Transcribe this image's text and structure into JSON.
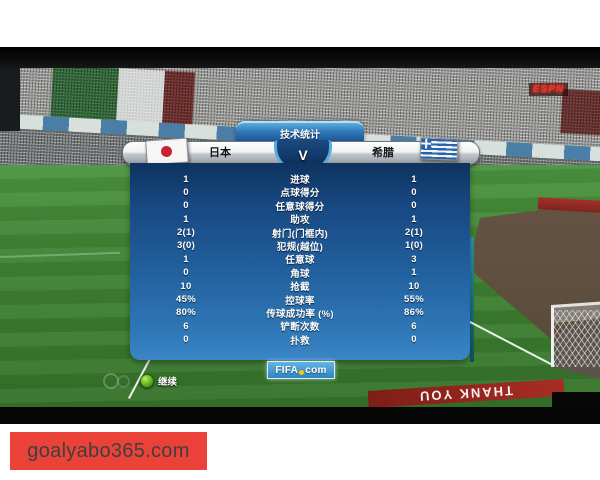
{
  "banner": {
    "text": "goalyabo365.com"
  },
  "scene": {
    "espn_sign": "ESPN",
    "pitch_ad_text": "THANK YOU"
  },
  "controls": {
    "continue_label": "继续"
  },
  "colors": {
    "panel_blue": "#22609e",
    "tab_blue": "#2d73b6",
    "banner_red": "#ea4238",
    "pitch_green": "#3f8434"
  },
  "panel": {
    "title": "技术统计",
    "versus": "V",
    "home": {
      "name": "日本",
      "flag": "japan-flag"
    },
    "away": {
      "name": "希腊",
      "flag": "greece-flag"
    },
    "footer_logo": {
      "left": "FIFA",
      "right": "com"
    },
    "rows": [
      {
        "label": "进球",
        "home": "1",
        "away": "1"
      },
      {
        "label": "点球得分",
        "home": "0",
        "away": "0"
      },
      {
        "label": "任意球得分",
        "home": "0",
        "away": "0"
      },
      {
        "label": "助攻",
        "home": "1",
        "away": "1"
      },
      {
        "label": "射门(门框内)",
        "home": "2(1)",
        "away": "2(1)"
      },
      {
        "label": "犯规(越位)",
        "home": "3(0)",
        "away": "1(0)"
      },
      {
        "label": "任意球",
        "home": "1",
        "away": "3"
      },
      {
        "label": "角球",
        "home": "0",
        "away": "1"
      },
      {
        "label": "抢截",
        "home": "10",
        "away": "10"
      },
      {
        "label": "控球率",
        "home": "45%",
        "away": "55%"
      },
      {
        "label": "传球成功率 (%)",
        "home": "80%",
        "away": "86%"
      },
      {
        "label": "铲断次数",
        "home": "6",
        "away": "6"
      },
      {
        "label": "扑救",
        "home": "0",
        "away": "0"
      }
    ]
  }
}
